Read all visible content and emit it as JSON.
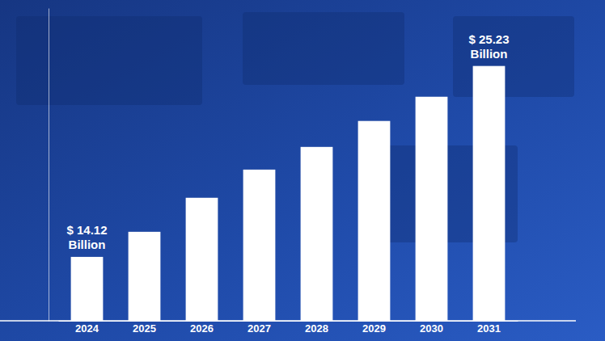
{
  "chart_data": {
    "type": "bar",
    "categories": [
      "2024",
      "2025",
      "2026",
      "2027",
      "2028",
      "2029",
      "2030",
      "2031"
    ],
    "values": [
      14.12,
      15.58,
      17.56,
      19.2,
      20.52,
      22.03,
      23.44,
      25.23
    ],
    "value_labels": [
      "$ 14.12 Billion",
      null,
      null,
      null,
      null,
      null,
      null,
      "$ 25.23 Billion"
    ],
    "data_labels": true,
    "color": "#ffffff",
    "ylim": [
      10.4,
      28.6
    ],
    "grid": false,
    "tick_labels": "x"
  }
}
